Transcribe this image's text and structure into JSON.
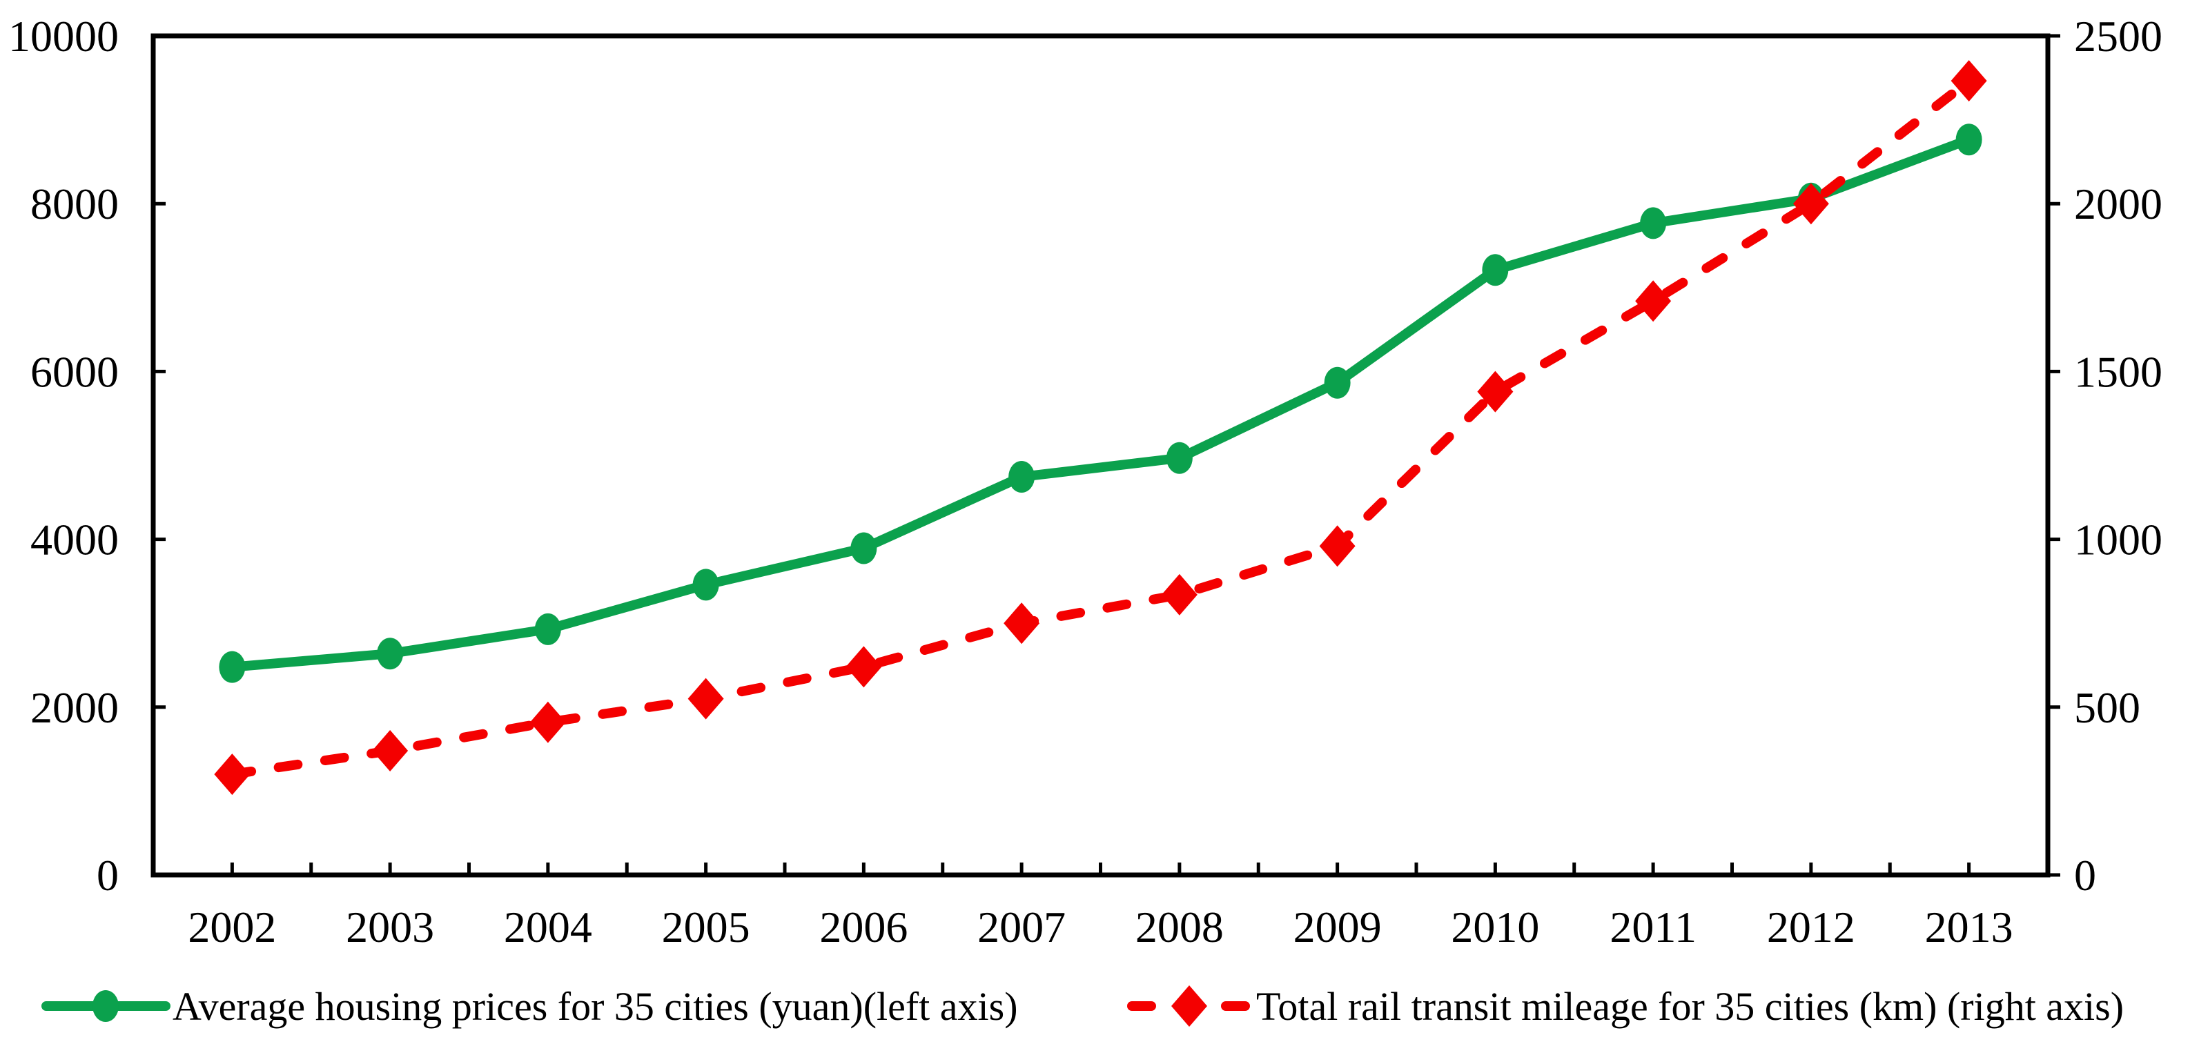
{
  "chart_data": {
    "type": "line",
    "title": "",
    "categories": [
      "2002",
      "2003",
      "2004",
      "2005",
      "2006",
      "2007",
      "2008",
      "2009",
      "2010",
      "2011",
      "2012",
      "2013"
    ],
    "series": [
      {
        "name": "Average housing prices for 35 cities (yuan)(left axis)",
        "axis": "left",
        "color": "#0ba14d",
        "line_style": "solid",
        "marker": "circle",
        "values": [
          2478,
          2638,
          2929,
          3459,
          3894,
          4745,
          4969,
          5866,
          7210,
          7768,
          8061,
          8764
        ]
      },
      {
        "name": "Total rail transit mileage for 35 cities (km) (right axis)",
        "axis": "right",
        "color": "#f40000",
        "line_style": "dashed",
        "marker": "diamond",
        "values": [
          300,
          370,
          455,
          525,
          620,
          750,
          835,
          980,
          1440,
          1710,
          2000,
          2366
        ]
      }
    ],
    "left_axis": {
      "min": 0,
      "max": 10000,
      "ticks": [
        0,
        2000,
        4000,
        6000,
        8000,
        10000
      ]
    },
    "right_axis": {
      "min": 0,
      "max": 2500,
      "ticks": [
        0,
        500,
        1000,
        1500,
        2000,
        2500
      ]
    },
    "x_axis": {
      "minor_ticks_per_category": 2
    },
    "grid": false,
    "legend_position": "bottom",
    "background_color": "#ffffff",
    "axis_color": "#000000"
  }
}
